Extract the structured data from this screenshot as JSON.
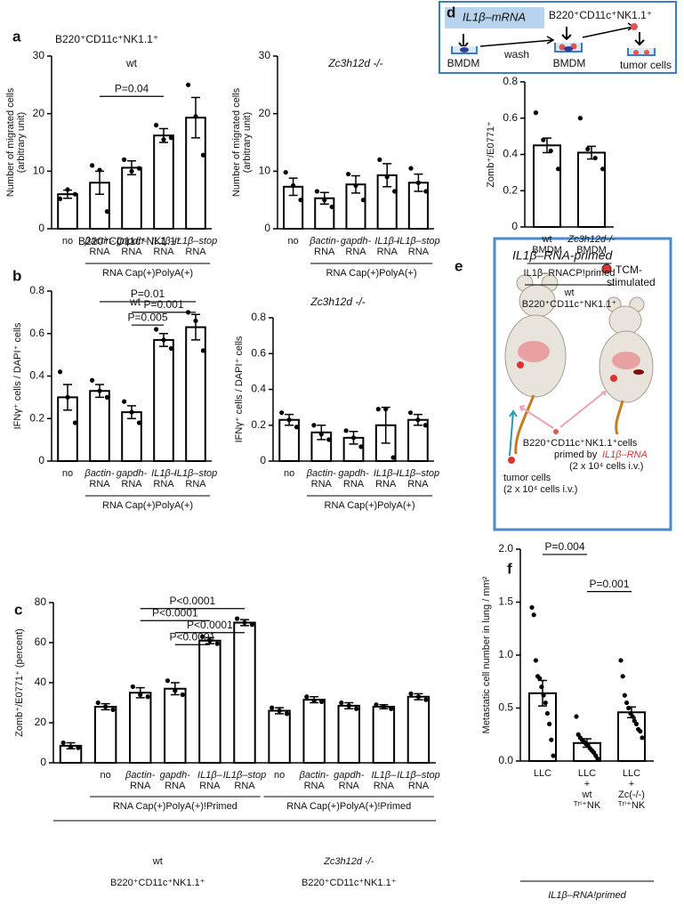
{
  "chart_data": [
    {
      "type": "bar",
      "panel": "a",
      "title": "B220⁺CD11c⁺NK1.1⁺",
      "subtitle": "wt",
      "ylabel": [
        "Number of migrated cells",
        "(arbitrary unit)"
      ],
      "categories": [
        [
          "no"
        ],
        [
          "βactin-",
          "RNA"
        ],
        [
          "gapdh-",
          "RNA"
        ],
        [
          "IL1β–",
          "RNA"
        ],
        [
          "IL1β–stop",
          "RNA"
        ]
      ],
      "values": [
        6,
        8,
        10.6,
        16.2,
        19.3
      ],
      "errors": [
        0.7,
        2,
        1.2,
        1.2,
        3.5
      ],
      "points": [
        [
          5.2,
          6.8,
          6
        ],
        [
          11,
          10.2,
          3
        ],
        [
          12,
          10,
          10.5
        ],
        [
          18,
          15.5,
          15.8
        ],
        [
          25,
          19.5,
          12.8
        ]
      ],
      "ylim": [
        0,
        30
      ],
      "yticks": [
        0,
        10,
        20,
        30
      ],
      "brackets": [
        {
          "label": "P=0.04",
          "start": 1,
          "end": 3,
          "y": 23
        }
      ],
      "groups": [
        {
          "lines": [
            "RNA Cap(+)PolyA(+)"
          ],
          "start": 1,
          "end": 4
        }
      ],
      "footer": []
    },
    {
      "type": "bar",
      "subtitle": "Zc3h12d -/-",
      "ylabel": [
        "Number of migrated cells",
        "(arbitrary unit)"
      ],
      "categories": [
        [
          "no"
        ],
        [
          "βactin-",
          "RNA"
        ],
        [
          "gapdh-",
          "RNA"
        ],
        [
          "IL1β–",
          "RNA"
        ],
        [
          "IL1β–stop",
          "RNA"
        ]
      ],
      "values": [
        7.3,
        5.3,
        7.7,
        9.3,
        8
      ],
      "errors": [
        1.5,
        1,
        1.5,
        2,
        1.5
      ],
      "points": [
        [
          9.8,
          7.5,
          5
        ],
        [
          6.5,
          5,
          3.8
        ],
        [
          9.5,
          7.5,
          5
        ],
        [
          12,
          9,
          6.5
        ],
        [
          10.5,
          8,
          6.5
        ]
      ],
      "ylim": [
        0,
        30
      ],
      "yticks": [
        0,
        10,
        20,
        30
      ],
      "brackets": [],
      "groups": [
        {
          "lines": [
            "RNA Cap(+)PolyA(+)"
          ],
          "start": 1,
          "end": 4
        }
      ],
      "footer": []
    },
    {
      "type": "bar",
      "panel": "b",
      "title": "B220⁺CD11c⁺NK1.1⁺",
      "subtitle": "wt",
      "ylabel": [
        "IFNγ⁺ cells / DAPI⁺ cells"
      ],
      "categories": [
        [
          "no"
        ],
        [
          "βactin-",
          "RNA"
        ],
        [
          "gapdh-",
          "RNA"
        ],
        [
          "IL1β–",
          "RNA"
        ],
        [
          "IL1β–stop",
          "RNA"
        ]
      ],
      "values": [
        0.3,
        0.33,
        0.23,
        0.57,
        0.63
      ],
      "errors": [
        0.06,
        0.03,
        0.03,
        0.03,
        0.06
      ],
      "points": [
        [
          0.42,
          0.3,
          0.18
        ],
        [
          0.38,
          0.33,
          0.3
        ],
        [
          0.28,
          0.23,
          0.18
        ],
        [
          0.62,
          0.57,
          0.53
        ],
        [
          0.7,
          0.66,
          0.52
        ]
      ],
      "ylim": [
        0,
        0.8
      ],
      "yticks": [
        0,
        0.2,
        0.4,
        0.6,
        0.8
      ],
      "brackets": [
        {
          "label": "P=0.01",
          "start": 1,
          "end": 4,
          "y": 0.75
        },
        {
          "label": "P=0.001",
          "start": 2,
          "end": 4,
          "y": 0.7
        },
        {
          "label": "P=0.005",
          "start": 2,
          "end": 3,
          "y": 0.64
        }
      ],
      "groups": [
        {
          "lines": [
            "RNA Cap(+)PolyA(+)"
          ],
          "start": 1,
          "end": 4
        }
      ],
      "footer": []
    },
    {
      "type": "bar",
      "subtitle": "Zc3h12d -/-",
      "ylabel": [
        "IFNγ⁺ cells / DAPI⁺ cells"
      ],
      "categories": [
        [
          "no"
        ],
        [
          "βactin-",
          "RNA"
        ],
        [
          "gapdh-",
          "RNA"
        ],
        [
          "IL1β–",
          "RNA"
        ],
        [
          "IL1β–stop",
          "RNA"
        ]
      ],
      "values": [
        0.23,
        0.16,
        0.13,
        0.2,
        0.23
      ],
      "errors": [
        0.03,
        0.04,
        0.035,
        0.1,
        0.03
      ],
      "points": [
        [
          0.27,
          0.23,
          0.19
        ],
        [
          0.2,
          0.15,
          0.12
        ],
        [
          0.17,
          0.13,
          0.08
        ],
        [
          0.29,
          0.29,
          0.02
        ],
        [
          0.27,
          0.23,
          0.2
        ]
      ],
      "ylim": [
        0,
        0.8
      ],
      "yticks": [
        0,
        0.2,
        0.4,
        0.6,
        0.8
      ],
      "brackets": [],
      "groups": [
        {
          "lines": [
            "RNA Cap(+)PolyA(+)"
          ],
          "start": 1,
          "end": 4
        }
      ],
      "footer": []
    },
    {
      "type": "bar",
      "panel": "c",
      "ylabel": [
        "Zomb⁺/E0771⁺ (percent)"
      ],
      "categories": [
        null,
        [
          "no"
        ],
        [
          "βactin-",
          "RNA"
        ],
        [
          "gapdh-",
          "RNA"
        ],
        [
          "IL1β–",
          "RNA"
        ],
        [
          "IL1β–stop",
          "RNA"
        ],
        [
          "no"
        ],
        [
          "βactin-",
          "RNA"
        ],
        [
          "gapdh-",
          "RNA"
        ],
        [
          "IL1β–",
          "RNA"
        ],
        [
          "IL1β–stop",
          "RNA"
        ]
      ],
      "values": [
        8.5,
        28,
        35,
        37,
        61,
        70,
        26,
        31.5,
        28.5,
        28,
        33
      ],
      "errors": [
        1.5,
        1.5,
        2.5,
        3,
        1.5,
        1.5,
        1.5,
        1.5,
        1.5,
        1,
        1.5
      ],
      "points": [
        [
          10,
          8,
          7.5
        ],
        [
          30,
          28,
          26.5
        ],
        [
          38,
          34,
          33
        ],
        [
          41,
          36,
          34
        ],
        [
          63,
          61,
          59.5
        ],
        [
          72,
          70,
          69
        ],
        [
          27.5,
          26,
          24.5
        ],
        [
          33,
          31,
          30.5
        ],
        [
          30,
          28.5,
          27
        ],
        [
          29,
          28,
          27
        ],
        [
          34.5,
          33,
          31.5
        ]
      ],
      "ylim": [
        0,
        80
      ],
      "yticks": [
        0,
        20,
        40,
        60,
        80
      ],
      "brackets": [
        {
          "label": "P<0.0001",
          "start": 2,
          "end": 5,
          "y": 77
        },
        {
          "label": "P<0.0001",
          "start": 2,
          "end": 4,
          "y": 71
        },
        {
          "label": "P<0.0001",
          "start": 3,
          "end": 5,
          "y": 65
        },
        {
          "label": "P<0.0001",
          "start": 3,
          "end": 4,
          "y": 59
        }
      ],
      "groups": [
        {
          "lines": [
            "RNA Cap(+)PolyA(+)!Primed"
          ],
          "start": 1,
          "end": 5
        },
        {
          "lines": [
            "RNA Cap(+)PolyA(+)!Primed"
          ],
          "start": 6,
          "end": 10
        }
      ],
      "footer": [
        {
          "lines": [
            "wt",
            "B220⁺CD11c⁺NK1.1⁺"
          ],
          "start": 0,
          "end": 5
        },
        {
          "lines": [
            "Zc3h12d -/-",
            "B220⁺CD11c⁺NK1.1⁺"
          ],
          "start": 6,
          "end": 10
        }
      ]
    },
    {
      "type": "bar",
      "panel": "d",
      "ylabel": [
        "Zomb⁺/E0771⁺"
      ],
      "categories": [
        [
          "wt",
          "BMDM"
        ],
        [
          "Zc3h12d-/-",
          "BMDM"
        ]
      ],
      "values": [
        0.45,
        0.41
      ],
      "errors": [
        0.04,
        0.035
      ],
      "points": [
        [
          0.63,
          0.48,
          0.42,
          0.32
        ],
        [
          0.6,
          0.43,
          0.38,
          0.32
        ]
      ],
      "ylim": [
        0,
        0.8
      ],
      "yticks": [
        0,
        0.2,
        0.4,
        0.6,
        0.8
      ],
      "brackets": [],
      "groups": [
        {
          "lines": [
            "IL1β–RNACP!primed"
          ],
          "start": 0,
          "end": 1
        }
      ],
      "footer": [
        {
          "lines": [
            "wt",
            "B220⁺CD11c⁺NK1.1⁺"
          ],
          "start": 0,
          "end": 1
        }
      ]
    },
    {
      "type": "bar",
      "panel": "f",
      "ylabel": [
        "Metastatic cell number in lung / mm²"
      ],
      "categories": [
        [
          "LLC"
        ],
        [
          "LLC",
          "+",
          "wt",
          "ᵀʳⁱ⁺NK"
        ],
        [
          "LLC",
          "+",
          "Zc(-/-)",
          "ᵀʳⁱ⁺NK"
        ]
      ],
      "values": [
        0.64,
        0.17,
        0.46
      ],
      "errors": [
        0.12,
        0.04,
        0.05
      ],
      "points": [
        [
          1.45,
          1.38,
          0.95,
          0.8,
          0.78,
          0.7,
          0.62,
          0.55,
          0.45,
          0.35,
          0.2,
          0.05
        ],
        [
          0.42,
          0.25,
          0.22,
          0.2,
          0.18,
          0.16,
          0.15,
          0.12,
          0.1,
          0.08,
          0.05,
          0.02
        ],
        [
          0.95,
          0.8,
          0.62,
          0.55,
          0.5,
          0.45,
          0.42,
          0.38,
          0.35,
          0.3,
          0.28,
          0.22
        ]
      ],
      "ylim": [
        0,
        2
      ],
      "yticks": [
        {
          "value": 0,
          "label": "0.0"
        },
        0.5,
        {
          "value": 1,
          "label": "1.0"
        },
        1.5,
        {
          "value": 2,
          "label": "2.0"
        }
      ],
      "brackets": [
        {
          "label": "P=0.004",
          "start": 0,
          "end": 1,
          "y": 1.95
        },
        {
          "label": "P=0.001",
          "start": 1,
          "end": 2,
          "y": 1.6
        }
      ],
      "groups": [],
      "footer": [
        {
          "lines": [
            "IL1β–RNA!primed"
          ],
          "start": 0,
          "end": 2
        }
      ]
    }
  ],
  "diagram_d": {
    "mrna": "IL1β–mRNA",
    "cells": "B220⁺CD11c⁺NK1.1⁺",
    "bmdm1": "BMDM",
    "wash": "wash",
    "bmdm2": "BMDM",
    "tumor": "tumor cells"
  },
  "diagram_e": {
    "panel": "e",
    "title": "IL1β–RNA-primed",
    "tcm": [
      "TCM-",
      "stimulated"
    ],
    "cells": "B220⁺CD11c⁺NK1.1⁺cells",
    "primed_prefix": "primed by",
    "primed_gene": "IL1β–RNA",
    "dose1": "(2 x 10⁴ cells i.v.)",
    "tumor": "tumor cells",
    "dose2": "(2 x 10⁴ cells i.v.)"
  }
}
